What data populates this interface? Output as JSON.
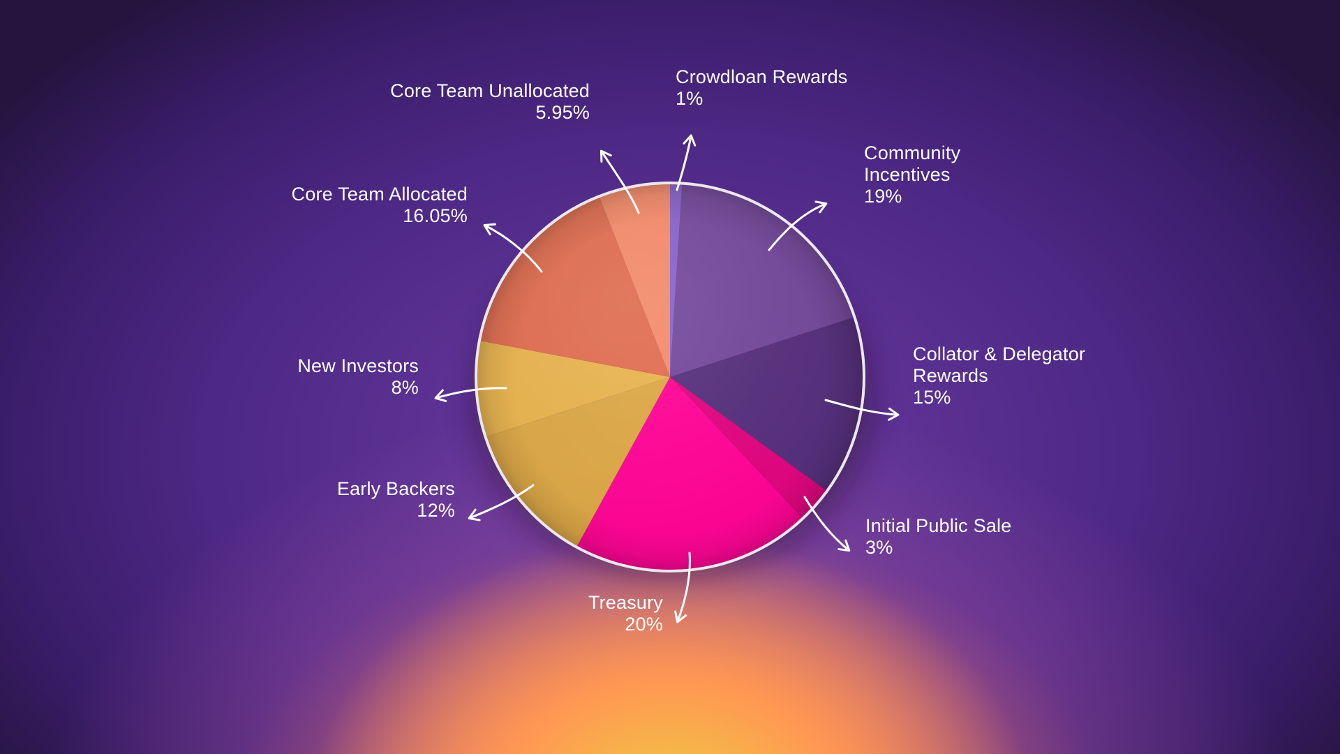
{
  "chart_data": {
    "type": "pie",
    "slices": [
      {
        "label_lines": [
          "Crowdloan Rewards"
        ],
        "value_text": "1%",
        "value": 1,
        "color": "#8a63c9"
      },
      {
        "label_lines": [
          "Community",
          "Incentives"
        ],
        "value_text": "19%",
        "value": 19,
        "color": "#73489a"
      },
      {
        "label_lines": [
          "Collator & Delegator",
          "Rewards"
        ],
        "value_text": "15%",
        "value": 15,
        "color": "#56307c"
      },
      {
        "label_lines": [
          "Initial Public Sale"
        ],
        "value_text": "3%",
        "value": 3,
        "color": "#e0067f"
      },
      {
        "label_lines": [
          "Treasury"
        ],
        "value_text": "20%",
        "value": 20,
        "color": "#ff0595"
      },
      {
        "label_lines": [
          "Early Backers"
        ],
        "value_text": "12%",
        "value": 12,
        "color": "#dca746"
      },
      {
        "label_lines": [
          "New Investors"
        ],
        "value_text": "8%",
        "value": 8,
        "color": "#e8b34e"
      },
      {
        "label_lines": [
          "Core Team Allocated"
        ],
        "value_text": "16.05%",
        "value": 16.05,
        "color": "#e06c4f"
      },
      {
        "label_lines": [
          "Core Team Unallocated"
        ],
        "value_text": "5.95%",
        "value": 5.95,
        "color": "#f58a69"
      }
    ]
  }
}
